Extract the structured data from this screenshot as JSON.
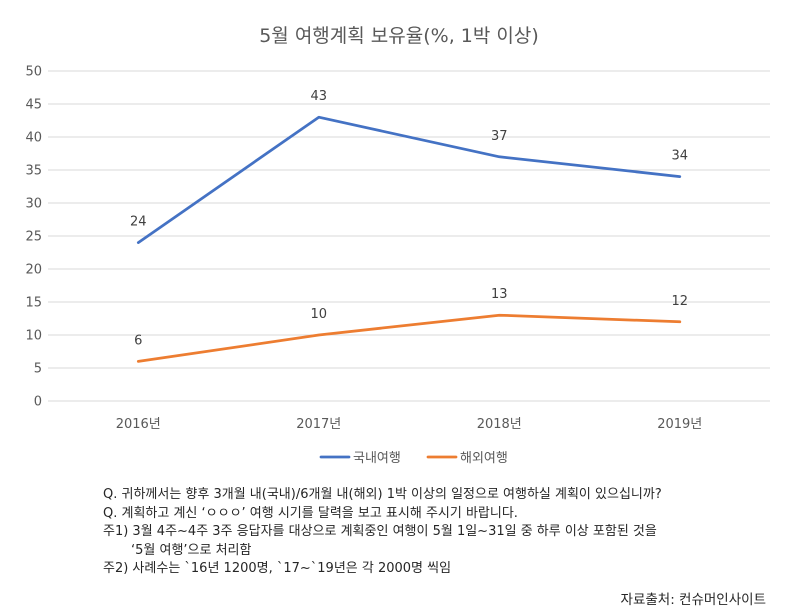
{
  "chart_data": {
    "type": "line",
    "title": "5월 여행계획 보유율(%, 1박 이상)",
    "categories": [
      "2016년",
      "2017년",
      "2018년",
      "2019년"
    ],
    "series": [
      {
        "name": "국내여행",
        "values": [
          24,
          43,
          37,
          34
        ],
        "color": "#4472C4"
      },
      {
        "name": "해외여행",
        "values": [
          6,
          10,
          13,
          12
        ],
        "color": "#ED7D31"
      }
    ],
    "ylim": [
      0,
      50
    ],
    "yticks": [
      0,
      5,
      10,
      15,
      20,
      25,
      30,
      35,
      40,
      45,
      50
    ],
    "grid": true,
    "legend_position": "bottom",
    "data_labels": true
  },
  "notes": [
    "Q. 귀하께서는 향후 3개월 내(국내)/6개월 내(해외) 1박 이상의 일정으로 여행하실 계획이 있으십니까?",
    "Q. 계획하고 계신 ‘ㅇㅇㅇ’ 여행 시기를 달력을 보고 표시해 주시기 바랍니다.",
    "주1) 3월 4주~4주 3주 응답자를 대상으로 계획중인 여행이 5월 1일~31일 중 하루 이상 포함된 것을",
    "‘5월 여행’으로 처리함",
    "주2) 사례수는 `16년 1200명, `17~`19년은 각 2000명 씩임"
  ],
  "source": "자료출처: 컨슈머인사이트"
}
